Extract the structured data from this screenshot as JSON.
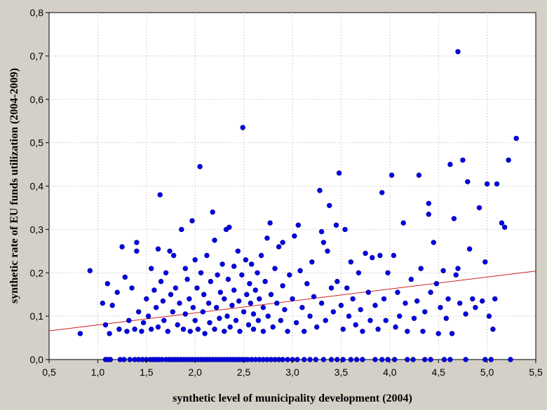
{
  "chart_data": {
    "type": "scatter",
    "title": "",
    "xlabel": "synthetic level of municipality development (2004)",
    "ylabel": "synthetic rate of EU funds utilization (2004-2009)",
    "xlim": [
      0.5,
      5.5
    ],
    "ylim": [
      0.0,
      0.8
    ],
    "x_ticks": [
      "0,5",
      "1,0",
      "1,5",
      "2,0",
      "2,5",
      "3,0",
      "3,5",
      "4,0",
      "4,5",
      "5,0",
      "5,5"
    ],
    "y_ticks": [
      "0,0",
      "0,1",
      "0,2",
      "0,3",
      "0,4",
      "0,5",
      "0,6",
      "0,7",
      "0,8"
    ],
    "grid": true,
    "point_color": "#0000e6",
    "trend_color": "#cc2020",
    "trend_line": {
      "x": [
        0.5,
        5.5
      ],
      "y": [
        0.066,
        0.204
      ]
    },
    "series": [
      {
        "points": [
          [
            0.82,
            0.06
          ],
          [
            0.92,
            0.205
          ],
          [
            1.05,
            0.13
          ],
          [
            1.08,
            0.08
          ],
          [
            1.1,
            0.175
          ],
          [
            1.12,
            0.06
          ],
          [
            1.15,
            0.125
          ],
          [
            1.2,
            0.155
          ],
          [
            1.22,
            0.07
          ],
          [
            1.25,
            0.26
          ],
          [
            1.28,
            0.19
          ],
          [
            1.3,
            0.065
          ],
          [
            1.32,
            0.09
          ],
          [
            1.35,
            0.165
          ],
          [
            1.38,
            0.07
          ],
          [
            1.4,
            0.27
          ],
          [
            1.4,
            0.25
          ],
          [
            1.42,
            0.11
          ],
          [
            1.45,
            0.065
          ],
          [
            1.47,
            0.085
          ],
          [
            1.5,
            0.14
          ],
          [
            1.52,
            0.1
          ],
          [
            1.55,
            0.21
          ],
          [
            1.55,
            0.07
          ],
          [
            1.58,
            0.16
          ],
          [
            1.6,
            0.12
          ],
          [
            1.62,
            0.255
          ],
          [
            1.62,
            0.075
          ],
          [
            1.64,
            0.38
          ],
          [
            1.65,
            0.18
          ],
          [
            1.67,
            0.135
          ],
          [
            1.68,
            0.09
          ],
          [
            1.7,
            0.2
          ],
          [
            1.72,
            0.065
          ],
          [
            1.74,
            0.25
          ],
          [
            1.75,
            0.15
          ],
          [
            1.77,
            0.11
          ],
          [
            1.78,
            0.24
          ],
          [
            1.8,
            0.165
          ],
          [
            1.82,
            0.08
          ],
          [
            1.84,
            0.13
          ],
          [
            1.86,
            0.3
          ],
          [
            1.88,
            0.07
          ],
          [
            1.9,
            0.21
          ],
          [
            1.9,
            0.105
          ],
          [
            1.92,
            0.185
          ],
          [
            1.94,
            0.14
          ],
          [
            1.95,
            0.065
          ],
          [
            1.97,
            0.32
          ],
          [
            1.98,
            0.12
          ],
          [
            2.0,
            0.23
          ],
          [
            2.0,
            0.09
          ],
          [
            2.02,
            0.165
          ],
          [
            2.03,
            0.07
          ],
          [
            2.05,
            0.445
          ],
          [
            2.06,
            0.2
          ],
          [
            2.08,
            0.11
          ],
          [
            2.09,
            0.15
          ],
          [
            2.1,
            0.06
          ],
          [
            2.12,
            0.24
          ],
          [
            2.14,
            0.13
          ],
          [
            2.15,
            0.085
          ],
          [
            2.16,
            0.18
          ],
          [
            2.18,
            0.34
          ],
          [
            2.2,
            0.07
          ],
          [
            2.2,
            0.275
          ],
          [
            2.22,
            0.12
          ],
          [
            2.23,
            0.195
          ],
          [
            2.25,
            0.095
          ],
          [
            2.26,
            0.155
          ],
          [
            2.28,
            0.22
          ],
          [
            2.3,
            0.065
          ],
          [
            2.3,
            0.14
          ],
          [
            2.32,
            0.3
          ],
          [
            2.33,
            0.1
          ],
          [
            2.34,
            0.185
          ],
          [
            2.35,
            0.305
          ],
          [
            2.36,
            0.075
          ],
          [
            2.38,
            0.125
          ],
          [
            2.4,
            0.215
          ],
          [
            2.4,
            0.16
          ],
          [
            2.42,
            0.09
          ],
          [
            2.44,
            0.25
          ],
          [
            2.45,
            0.135
          ],
          [
            2.46,
            0.065
          ],
          [
            2.48,
            0.195
          ],
          [
            2.49,
            0.535
          ],
          [
            2.5,
            0.11
          ],
          [
            2.52,
            0.23
          ],
          [
            2.53,
            0.15
          ],
          [
            2.55,
            0.08
          ],
          [
            2.56,
            0.175
          ],
          [
            2.57,
            0.13
          ],
          [
            2.58,
            0.22
          ],
          [
            2.6,
            0.07
          ],
          [
            2.6,
            0.105
          ],
          [
            2.62,
            0.16
          ],
          [
            2.64,
            0.2
          ],
          [
            2.65,
            0.09
          ],
          [
            2.66,
            0.14
          ],
          [
            2.68,
            0.24
          ],
          [
            2.7,
            0.12
          ],
          [
            2.7,
            0.065
          ],
          [
            2.72,
            0.18
          ],
          [
            2.74,
            0.28
          ],
          [
            2.75,
            0.1
          ],
          [
            2.77,
            0.315
          ],
          [
            2.78,
            0.15
          ],
          [
            2.8,
            0.075
          ],
          [
            2.82,
            0.21
          ],
          [
            2.84,
            0.13
          ],
          [
            2.86,
            0.26
          ],
          [
            2.88,
            0.09
          ],
          [
            2.9,
            0.17
          ],
          [
            2.9,
            0.27
          ],
          [
            2.92,
            0.115
          ],
          [
            2.95,
            0.065
          ],
          [
            2.97,
            0.195
          ],
          [
            3.0,
            0.14
          ],
          [
            3.02,
            0.285
          ],
          [
            3.04,
            0.085
          ],
          [
            3.06,
            0.31
          ],
          [
            3.08,
            0.205
          ],
          [
            3.1,
            0.12
          ],
          [
            3.12,
            0.065
          ],
          [
            3.15,
            0.175
          ],
          [
            3.18,
            0.1
          ],
          [
            3.2,
            0.225
          ],
          [
            3.22,
            0.145
          ],
          [
            3.25,
            0.075
          ],
          [
            3.28,
            0.39
          ],
          [
            3.3,
            0.295
          ],
          [
            3.3,
            0.13
          ],
          [
            3.32,
            0.27
          ],
          [
            3.34,
            0.09
          ],
          [
            3.36,
            0.25
          ],
          [
            3.38,
            0.355
          ],
          [
            3.4,
            0.165
          ],
          [
            3.42,
            0.11
          ],
          [
            3.45,
            0.31
          ],
          [
            3.46,
            0.18
          ],
          [
            3.48,
            0.43
          ],
          [
            3.5,
            0.125
          ],
          [
            3.52,
            0.07
          ],
          [
            3.54,
            0.3
          ],
          [
            3.56,
            0.165
          ],
          [
            3.58,
            0.1
          ],
          [
            3.6,
            0.225
          ],
          [
            3.62,
            0.14
          ],
          [
            3.65,
            0.08
          ],
          [
            3.68,
            0.2
          ],
          [
            3.7,
            0.115
          ],
          [
            3.72,
            0.065
          ],
          [
            3.75,
            0.245
          ],
          [
            3.78,
            0.155
          ],
          [
            3.8,
            0.09
          ],
          [
            3.82,
            0.235
          ],
          [
            3.85,
            0.125
          ],
          [
            3.88,
            0.07
          ],
          [
            3.9,
            0.24
          ],
          [
            3.92,
            0.385
          ],
          [
            3.94,
            0.14
          ],
          [
            3.96,
            0.09
          ],
          [
            3.98,
            0.2
          ],
          [
            4.02,
            0.425
          ],
          [
            4.04,
            0.24
          ],
          [
            4.06,
            0.075
          ],
          [
            4.08,
            0.155
          ],
          [
            4.1,
            0.1
          ],
          [
            4.14,
            0.315
          ],
          [
            4.16,
            0.13
          ],
          [
            4.18,
            0.065
          ],
          [
            4.22,
            0.185
          ],
          [
            4.25,
            0.095
          ],
          [
            4.28,
            0.135
          ],
          [
            4.3,
            0.425
          ],
          [
            4.32,
            0.21
          ],
          [
            4.34,
            0.065
          ],
          [
            4.36,
            0.11
          ],
          [
            4.4,
            0.36
          ],
          [
            4.4,
            0.335
          ],
          [
            4.42,
            0.155
          ],
          [
            4.45,
            0.27
          ],
          [
            4.48,
            0.175
          ],
          [
            4.5,
            0.06
          ],
          [
            4.52,
            0.12
          ],
          [
            4.55,
            0.205
          ],
          [
            4.58,
            0.095
          ],
          [
            4.6,
            0.14
          ],
          [
            4.62,
            0.45
          ],
          [
            4.64,
            0.06
          ],
          [
            4.66,
            0.325
          ],
          [
            4.68,
            0.195
          ],
          [
            4.7,
            0.71
          ],
          [
            4.7,
            0.21
          ],
          [
            4.72,
            0.13
          ],
          [
            4.75,
            0.46
          ],
          [
            4.78,
            0.105
          ],
          [
            4.8,
            0.41
          ],
          [
            4.82,
            0.255
          ],
          [
            4.85,
            0.14
          ],
          [
            4.88,
            0.12
          ],
          [
            4.92,
            0.35
          ],
          [
            4.95,
            0.135
          ],
          [
            4.98,
            0.225
          ],
          [
            5.0,
            0.405
          ],
          [
            5.02,
            0.1
          ],
          [
            5.06,
            0.07
          ],
          [
            5.08,
            0.14
          ],
          [
            5.1,
            0.405
          ],
          [
            5.15,
            0.315
          ],
          [
            5.18,
            0.305
          ],
          [
            5.22,
            0.46
          ],
          [
            5.3,
            0.51
          ],
          [
            1.08,
            0.0
          ],
          [
            1.1,
            0.0
          ],
          [
            1.13,
            0.0
          ],
          [
            1.23,
            0.0
          ],
          [
            1.27,
            0.0
          ],
          [
            1.33,
            0.0
          ],
          [
            1.38,
            0.0
          ],
          [
            1.42,
            0.0
          ],
          [
            1.46,
            0.0
          ],
          [
            1.5,
            0.0
          ],
          [
            1.54,
            0.0
          ],
          [
            1.57,
            0.0
          ],
          [
            1.6,
            0.0
          ],
          [
            1.63,
            0.0
          ],
          [
            1.66,
            0.0
          ],
          [
            1.7,
            0.0
          ],
          [
            1.73,
            0.0
          ],
          [
            1.76,
            0.0
          ],
          [
            1.79,
            0.0
          ],
          [
            1.82,
            0.0
          ],
          [
            1.85,
            0.0
          ],
          [
            1.88,
            0.0
          ],
          [
            1.91,
            0.0
          ],
          [
            1.94,
            0.0
          ],
          [
            1.97,
            0.0
          ],
          [
            2.0,
            0.0
          ],
          [
            2.03,
            0.0
          ],
          [
            2.06,
            0.0
          ],
          [
            2.09,
            0.0
          ],
          [
            2.12,
            0.0
          ],
          [
            2.15,
            0.0
          ],
          [
            2.18,
            0.0
          ],
          [
            2.21,
            0.0
          ],
          [
            2.24,
            0.0
          ],
          [
            2.27,
            0.0
          ],
          [
            2.3,
            0.0
          ],
          [
            2.33,
            0.0
          ],
          [
            2.36,
            0.0
          ],
          [
            2.39,
            0.0
          ],
          [
            2.42,
            0.0
          ],
          [
            2.45,
            0.0
          ],
          [
            2.48,
            0.0
          ],
          [
            2.51,
            0.0
          ],
          [
            2.54,
            0.0
          ],
          [
            2.58,
            0.0
          ],
          [
            2.62,
            0.0
          ],
          [
            2.66,
            0.0
          ],
          [
            2.7,
            0.0
          ],
          [
            2.74,
            0.0
          ],
          [
            2.78,
            0.0
          ],
          [
            2.82,
            0.0
          ],
          [
            2.86,
            0.0
          ],
          [
            2.9,
            0.0
          ],
          [
            2.95,
            0.0
          ],
          [
            3.0,
            0.0
          ],
          [
            3.05,
            0.0
          ],
          [
            3.12,
            0.0
          ],
          [
            3.18,
            0.0
          ],
          [
            3.24,
            0.0
          ],
          [
            3.32,
            0.0
          ],
          [
            3.4,
            0.0
          ],
          [
            3.46,
            0.0
          ],
          [
            3.52,
            0.0
          ],
          [
            3.6,
            0.0
          ],
          [
            3.66,
            0.0
          ],
          [
            3.72,
            0.0
          ],
          [
            3.85,
            0.0
          ],
          [
            3.92,
            0.0
          ],
          [
            3.98,
            0.0
          ],
          [
            4.05,
            0.0
          ],
          [
            4.18,
            0.0
          ],
          [
            4.24,
            0.0
          ],
          [
            4.36,
            0.0
          ],
          [
            4.42,
            0.0
          ],
          [
            4.56,
            0.0
          ],
          [
            4.62,
            0.0
          ],
          [
            4.78,
            0.0
          ],
          [
            4.98,
            0.0
          ],
          [
            5.04,
            0.0
          ],
          [
            5.24,
            0.0
          ]
        ]
      }
    ]
  }
}
